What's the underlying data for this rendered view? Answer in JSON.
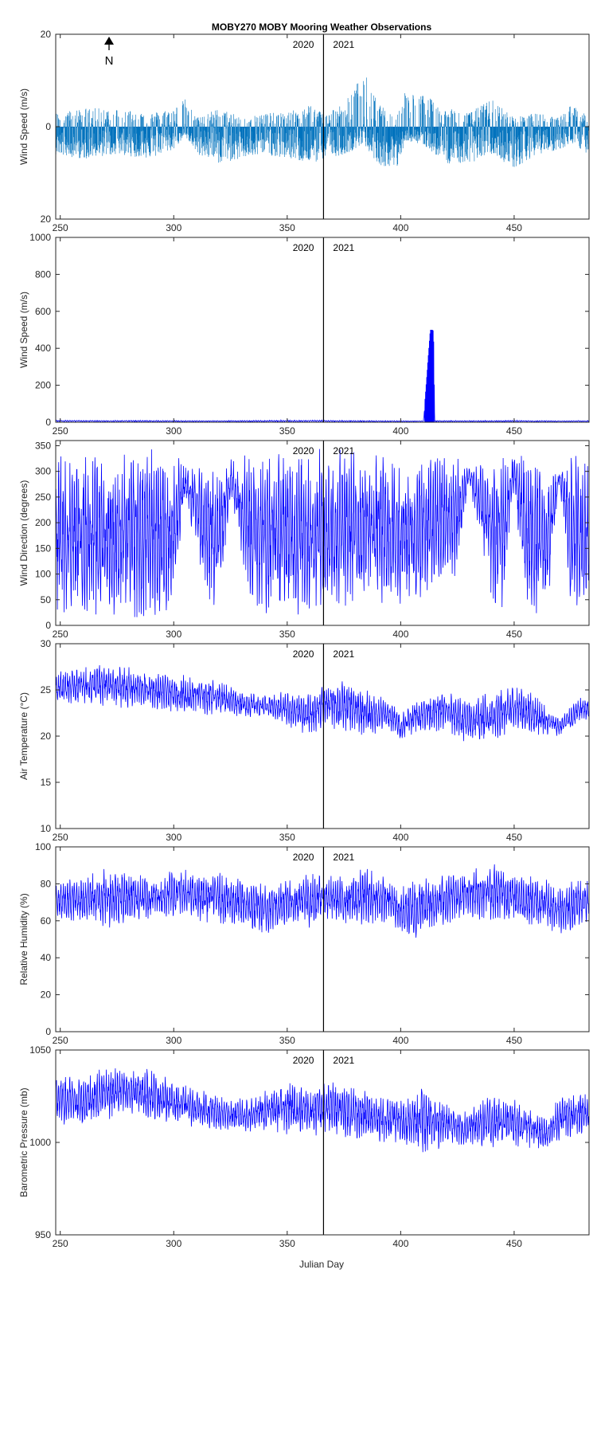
{
  "figure_title": "MOBY270 MOBY Mooring Weather Observations",
  "xlabel": "Julian Day",
  "xlim": [
    248,
    483
  ],
  "x_ticks": [
    250,
    300,
    350,
    400,
    450
  ],
  "year_divider_x": 366,
  "year_labels": [
    "2020",
    "2021"
  ],
  "north_label": "N",
  "colors": {
    "stick": "#0072BD",
    "line": "#0000FF",
    "axis": "#262626",
    "divider": "#000000"
  },
  "chart_data": [
    {
      "type": "line",
      "style": "stick",
      "ylabel": "Wind Speed (m/s)",
      "ylim": [
        -20,
        20
      ],
      "y_ticks": [
        20,
        0,
        20
      ],
      "y_tick_values": [
        20,
        0,
        -20
      ],
      "annotation": "north arrow",
      "series": [
        {
          "x": [
            248,
            260,
            275,
            290,
            300,
            305,
            310,
            320,
            330,
            340,
            350,
            360,
            366,
            375,
            384,
            390,
            398,
            402,
            410,
            420,
            430,
            440,
            450,
            460,
            470,
            475,
            483
          ],
          "hi": [
            3,
            4,
            4,
            3,
            4,
            6,
            2,
            4,
            2,
            3,
            3,
            5,
            3,
            5,
            12,
            5,
            2,
            8,
            7,
            4,
            3,
            6,
            2,
            3,
            2,
            5,
            2
          ],
          "lo": [
            -6,
            -7,
            -6,
            -7,
            -5,
            -2,
            -6,
            -8,
            -7,
            -6,
            -7,
            -8,
            -7,
            -6,
            -4,
            -8,
            -10,
            -3,
            -4,
            -8,
            -8,
            -6,
            -9,
            -6,
            -5,
            -4,
            -6
          ]
        }
      ]
    },
    {
      "type": "line",
      "ylabel": "Wind Speed (m/s)",
      "ylim": [
        0,
        1000
      ],
      "y_ticks": [
        0,
        200,
        400,
        600,
        800,
        1000
      ],
      "series": [
        {
          "x": [
            248,
            270,
            290,
            310,
            330,
            350,
            366,
            380,
            395,
            410,
            413,
            413.5,
            414,
            414.5,
            415,
            430,
            450,
            470,
            483
          ],
          "hi": [
            12,
            10,
            11,
            9,
            10,
            12,
            11,
            10,
            9,
            8,
            500,
            500,
            500,
            495,
            10,
            9,
            11,
            8,
            10
          ],
          "lo": [
            2,
            3,
            2,
            3,
            2,
            2,
            3,
            2,
            2,
            3,
            0,
            0,
            0,
            0,
            2,
            3,
            2,
            3,
            2
          ]
        }
      ]
    },
    {
      "type": "line",
      "ylabel": "Wind Direction (degrees)",
      "ylim": [
        0,
        360
      ],
      "y_ticks": [
        0,
        50,
        100,
        150,
        200,
        250,
        300,
        350
      ],
      "series": [
        {
          "x": [
            248,
            260,
            275,
            290,
            300,
            305,
            315,
            320,
            325,
            335,
            345,
            355,
            366,
            375,
            385,
            395,
            405,
            415,
            425,
            430,
            440,
            445,
            450,
            455,
            465,
            470,
            475,
            483
          ],
          "hi": [
            330,
            340,
            330,
            350,
            340,
            310,
            320,
            310,
            330,
            350,
            340,
            350,
            345,
            350,
            340,
            330,
            320,
            340,
            330,
            310,
            320,
            350,
            330,
            340,
            300,
            300,
            340,
            330
          ],
          "lo": [
            20,
            20,
            10,
            5,
            20,
            250,
            30,
            40,
            240,
            20,
            20,
            10,
            20,
            20,
            50,
            30,
            40,
            60,
            90,
            280,
            40,
            20,
            270,
            10,
            30,
            280,
            20,
            30
          ]
        }
      ]
    },
    {
      "type": "line",
      "ylabel": "Air Temperature (°C)",
      "ylim": [
        10,
        30
      ],
      "y_ticks": [
        10,
        15,
        20,
        25,
        30
      ],
      "series": [
        {
          "x": [
            248,
            260,
            270,
            280,
            290,
            300,
            310,
            320,
            330,
            340,
            350,
            360,
            366,
            375,
            385,
            395,
            400,
            405,
            410,
            420,
            430,
            440,
            450,
            460,
            465,
            470,
            480,
            483
          ],
          "hi": [
            27,
            27.5,
            28,
            27.5,
            27,
            26.5,
            27,
            26,
            25,
            24.5,
            25,
            24.5,
            26,
            26,
            25,
            24,
            22.5,
            24,
            24.5,
            25,
            24,
            25,
            25.5,
            24.5,
            23,
            22,
            24.5,
            24.5
          ],
          "lo": [
            23.5,
            23.5,
            23,
            23,
            23,
            22.5,
            22,
            22.5,
            22,
            22,
            21,
            20,
            21,
            20.5,
            20,
            20.5,
            19.5,
            20,
            20.5,
            20.5,
            19,
            19.5,
            20.5,
            20,
            20,
            20,
            21.5,
            21.5
          ]
        }
      ]
    },
    {
      "type": "line",
      "ylabel": "Relative Humidity (%)",
      "ylim": [
        0,
        100
      ],
      "y_ticks": [
        0,
        20,
        40,
        60,
        80,
        100
      ],
      "series": [
        {
          "x": [
            248,
            260,
            270,
            280,
            290,
            300,
            310,
            320,
            330,
            340,
            350,
            360,
            366,
            375,
            385,
            395,
            400,
            405,
            410,
            420,
            430,
            440,
            450,
            460,
            470,
            480,
            483
          ],
          "hi": [
            82,
            84,
            90,
            88,
            84,
            90,
            86,
            88,
            84,
            80,
            84,
            86,
            86,
            84,
            90,
            82,
            78,
            84,
            84,
            86,
            88,
            94,
            86,
            84,
            80,
            84,
            82
          ],
          "lo": [
            58,
            60,
            56,
            58,
            60,
            62,
            60,
            58,
            55,
            52,
            58,
            56,
            60,
            58,
            56,
            60,
            52,
            46,
            54,
            58,
            62,
            58,
            60,
            56,
            52,
            56,
            58
          ]
        }
      ]
    },
    {
      "type": "line",
      "ylabel": "Barometric Pressure (mb)",
      "ylim": [
        950,
        1050
      ],
      "y_ticks": [
        950,
        1000,
        1050
      ],
      "series": [
        {
          "x": [
            248,
            260,
            270,
            280,
            290,
            300,
            310,
            320,
            330,
            340,
            350,
            360,
            366,
            375,
            385,
            395,
            405,
            410,
            420,
            430,
            440,
            450,
            460,
            465,
            470,
            480,
            483
          ],
          "hi": [
            1037,
            1036,
            1042,
            1041,
            1040,
            1033,
            1030,
            1025,
            1024,
            1028,
            1034,
            1030,
            1034,
            1034,
            1028,
            1025,
            1025,
            1032,
            1022,
            1018,
            1026,
            1024,
            1016,
            1012,
            1028,
            1028,
            1024
          ],
          "lo": [
            1010,
            1008,
            1012,
            1014,
            1012,
            1010,
            1008,
            1006,
            1005,
            1005,
            1004,
            1003,
            1003,
            1002,
            1000,
            1000,
            997,
            993,
            998,
            998,
            997,
            998,
            996,
            996,
            1000,
            1004,
            1005
          ]
        }
      ]
    }
  ]
}
